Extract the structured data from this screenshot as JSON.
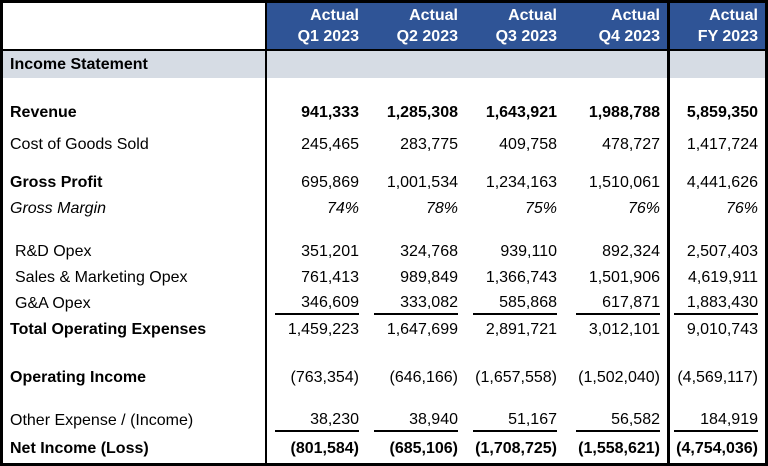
{
  "title": "Income Statement",
  "colors": {
    "header_bg": "#2F5496",
    "header_text": "#FFFFFF",
    "band_bg": "#D6DCE4",
    "border": "#000000",
    "text": "#000000"
  },
  "table": {
    "header": {
      "columns": [
        {
          "scenario": "Actual",
          "period": "Q1 2023"
        },
        {
          "scenario": "Actual",
          "period": "Q2 2023"
        },
        {
          "scenario": "Actual",
          "period": "Q3 2023"
        },
        {
          "scenario": "Actual",
          "period": "Q4 2023"
        },
        {
          "scenario": "Actual",
          "period": "FY 2023"
        }
      ]
    },
    "section_title": "Income Statement",
    "rows": [
      {
        "type": "spacer",
        "size": "lg"
      },
      {
        "type": "data",
        "label": "Revenue",
        "values": [
          "941,333",
          "1,285,308",
          "1,643,921",
          "1,988,788",
          "5,859,350"
        ],
        "bold_label": true,
        "bold_values": true
      },
      {
        "type": "spacer",
        "size": "xs"
      },
      {
        "type": "data",
        "label": "Cost of Goods Sold",
        "values": [
          "245,465",
          "283,775",
          "409,758",
          "478,727",
          "1,417,724"
        ]
      },
      {
        "type": "spacer",
        "size": "sm"
      },
      {
        "type": "data",
        "label": "Gross Profit",
        "values": [
          "695,869",
          "1,001,534",
          "1,234,163",
          "1,510,061",
          "4,441,626"
        ],
        "bold_label": true
      },
      {
        "type": "data",
        "label": "Gross Margin",
        "values": [
          "74%",
          "78%",
          "75%",
          "76%",
          "76%"
        ],
        "italic": true
      },
      {
        "type": "spacer",
        "size": "md"
      },
      {
        "type": "data",
        "label": "R&D Opex",
        "values": [
          "351,201",
          "324,768",
          "939,110",
          "892,324",
          "2,507,403"
        ],
        "indent": true
      },
      {
        "type": "data",
        "label": "Sales & Marketing Opex",
        "values": [
          "761,413",
          "989,849",
          "1,366,743",
          "1,501,906",
          "4,619,911"
        ],
        "indent": true
      },
      {
        "type": "data",
        "label": "G&A Opex",
        "values": [
          "346,609",
          "333,082",
          "585,868",
          "617,871",
          "1,883,430"
        ],
        "indent": true,
        "underline_values": true
      },
      {
        "type": "data",
        "label": "Total Operating Expenses",
        "values": [
          "1,459,223",
          "1,647,699",
          "2,891,721",
          "3,012,101",
          "9,010,743"
        ],
        "bold_label": true
      },
      {
        "type": "spacer",
        "size": "lg"
      },
      {
        "type": "data",
        "label": "Operating Income",
        "values": [
          "(763,354)",
          "(646,166)",
          "(1,657,558)",
          "(1,502,040)",
          "(4,569,117)"
        ],
        "bold_label": true
      },
      {
        "type": "spacer",
        "size": "md"
      },
      {
        "type": "data",
        "label": "Other Expense / (Income)",
        "values": [
          "38,230",
          "38,940",
          "51,167",
          "56,582",
          "184,919"
        ],
        "underline_values": true
      },
      {
        "type": "data",
        "label": "Net Income (Loss)",
        "values": [
          "(801,584)",
          "(685,106)",
          "(1,708,725)",
          "(1,558,621)",
          "(4,754,036)"
        ],
        "bold_label": true,
        "bold_values": true
      }
    ]
  }
}
